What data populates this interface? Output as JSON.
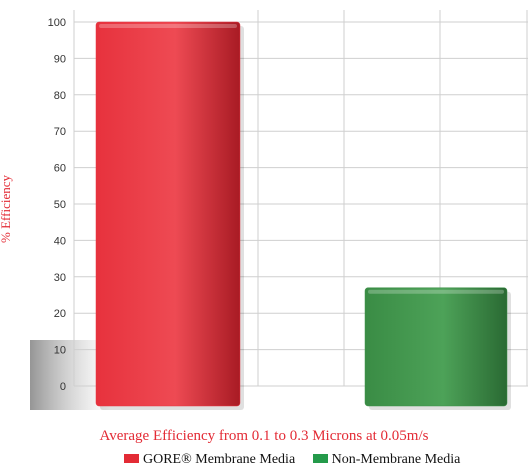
{
  "chart_data": {
    "type": "bar",
    "categories": [
      "GORE® Membrane Media",
      "Non-Membrane Media"
    ],
    "values": [
      100,
      27
    ],
    "colors": [
      "#e83540",
      "#3d9148"
    ],
    "title": "Average Efficiency from 0.1 to 0.3 Microns at 0.05m/s",
    "xlabel": "",
    "ylabel": "% Efficiency",
    "ylim": [
      0,
      100
    ],
    "yticks": [
      0,
      10,
      20,
      30,
      40,
      50,
      60,
      70,
      80,
      90,
      100
    ],
    "grid": true,
    "legend": [
      {
        "label": "GORE® Membrane Media",
        "color": "#e32b35"
      },
      {
        "label": "Non-Membrane Media",
        "color": "#249a4a"
      }
    ],
    "legend_position": "bottom",
    "accent_color": "#e32b35"
  }
}
